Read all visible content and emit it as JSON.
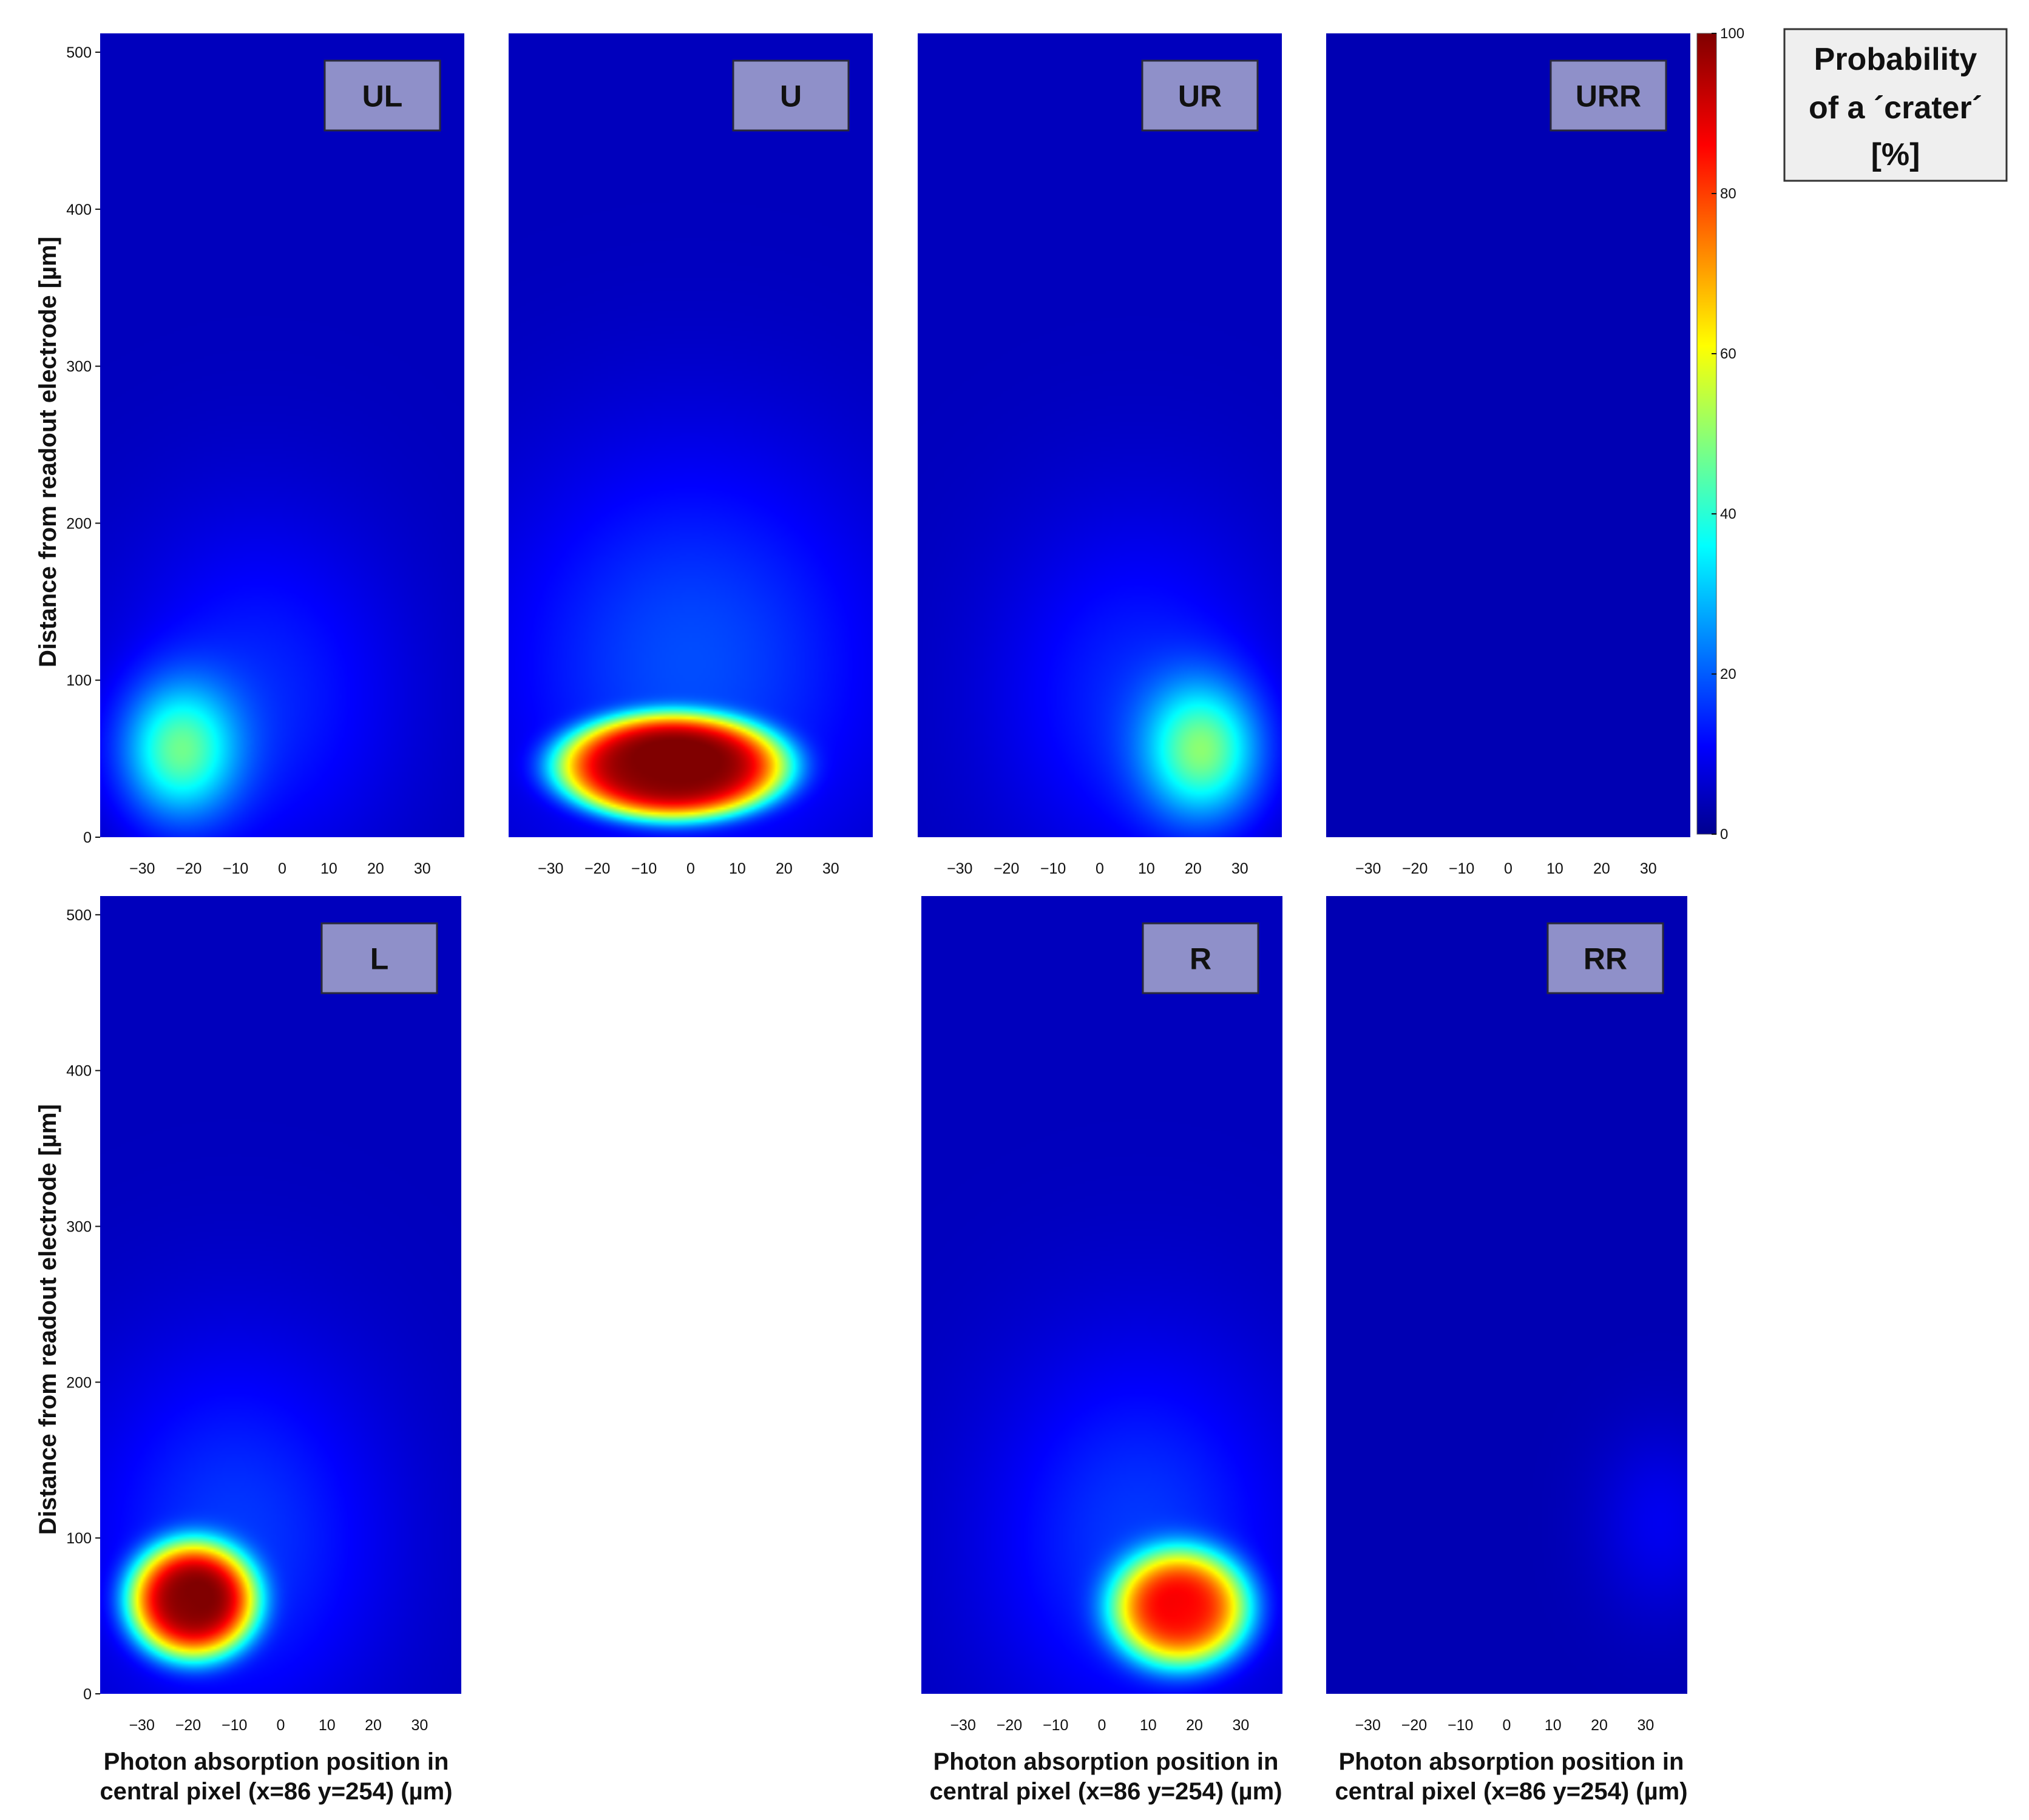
{
  "chart_data": {
    "type": "heatmap",
    "colormap": "jet",
    "colorbar": {
      "range": [
        0,
        100
      ],
      "ticks": [
        0,
        20,
        40,
        60,
        80,
        100
      ],
      "title_lines": [
        "Probability",
        "of a ´crater´",
        "[%]"
      ]
    },
    "x_ticks": [
      -30,
      -20,
      -10,
      0,
      10,
      20,
      30
    ],
    "y_ticks": [
      0,
      100,
      200,
      300,
      400,
      500
    ],
    "xlim": [
      -39,
      39
    ],
    "ylim": [
      0,
      512
    ],
    "ylabel": "Distance from readout electrode [µm]",
    "xlabel_lines": [
      "Photon absorption position in",
      "central pixel (x=86 y=254) (µm)"
    ],
    "panels": [
      {
        "label": "UL",
        "background": 6,
        "blobs": [
          {
            "x": -22,
            "y": 55,
            "peak": 36,
            "sx": 12,
            "sy": 42,
            "flat": 1.0
          },
          {
            "x": -5,
            "y": 90,
            "peak": 10,
            "sx": 30,
            "sy": 110,
            "flat": 1.0
          }
        ]
      },
      {
        "label": "U",
        "background": 6,
        "blobs": [
          {
            "x": -4,
            "y": 45,
            "peak": 84,
            "sx": 25,
            "sy": 34,
            "flat": 2.6
          },
          {
            "x": 0,
            "y": 110,
            "peak": 14,
            "sx": 40,
            "sy": 130,
            "flat": 1.0
          }
        ]
      },
      {
        "label": "UR",
        "background": 6,
        "blobs": [
          {
            "x": 22,
            "y": 55,
            "peak": 38,
            "sx": 12,
            "sy": 42,
            "flat": 1.0
          },
          {
            "x": 8,
            "y": 90,
            "peak": 10,
            "sx": 30,
            "sy": 110,
            "flat": 1.0
          }
        ]
      },
      {
        "label": "URR",
        "background": 5,
        "blobs": []
      },
      {
        "label": "L",
        "background": 6,
        "blobs": [
          {
            "x": -19,
            "y": 60,
            "peak": 84,
            "sx": 14,
            "sy": 38,
            "flat": 2.0
          },
          {
            "x": -10,
            "y": 100,
            "peak": 12,
            "sx": 32,
            "sy": 120,
            "flat": 1.0
          }
        ]
      },
      {
        "label": "R",
        "background": 6,
        "blobs": [
          {
            "x": 17,
            "y": 55,
            "peak": 72,
            "sx": 15,
            "sy": 38,
            "flat": 1.8
          },
          {
            "x": 8,
            "y": 100,
            "peak": 12,
            "sx": 32,
            "sy": 120,
            "flat": 1.0
          }
        ]
      },
      {
        "label": "RR",
        "background": 5,
        "blobs": [
          {
            "x": 33,
            "y": 110,
            "peak": 6,
            "sx": 14,
            "sy": 60,
            "flat": 1.0
          }
        ]
      }
    ]
  }
}
